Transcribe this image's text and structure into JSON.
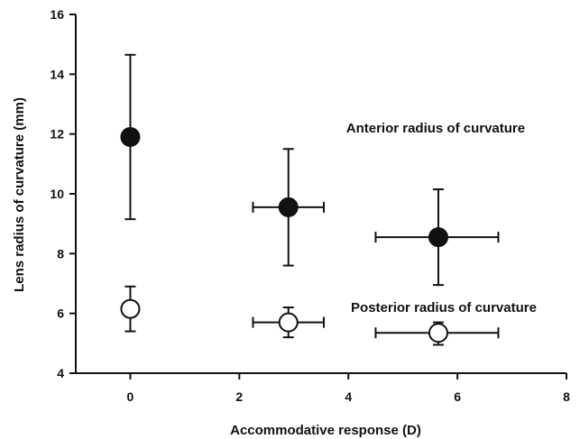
{
  "chart_data": {
    "type": "scatter",
    "title": "",
    "xlabel": "Accommodative response (D)",
    "ylabel": "Lens radius of curvature (mm)",
    "xlim": [
      -1,
      8
    ],
    "ylim": [
      4,
      16
    ],
    "xticks": [
      "0",
      "2",
      "4",
      "6",
      "8"
    ],
    "yticks": [
      "4",
      "6",
      "8",
      "10",
      "12",
      "14",
      "16"
    ],
    "grid": false,
    "series": [
      {
        "name": "Anterior radius of curvature",
        "marker": "filled-circle",
        "color": "#111111",
        "points": [
          {
            "x": 0.0,
            "y": 11.9,
            "y_low": 9.15,
            "y_high": 14.65
          },
          {
            "x": 2.9,
            "y": 9.55,
            "y_low": 7.6,
            "y_high": 11.5,
            "x_low": 2.25,
            "x_high": 3.55
          },
          {
            "x": 5.65,
            "y": 8.55,
            "y_low": 6.95,
            "y_high": 10.15,
            "x_low": 4.5,
            "x_high": 6.75
          }
        ]
      },
      {
        "name": "Posterior radius of curvature",
        "marker": "open-circle",
        "color": "#111111",
        "points": [
          {
            "x": 0.0,
            "y": 6.15,
            "y_low": 5.4,
            "y_high": 6.9
          },
          {
            "x": 2.9,
            "y": 5.7,
            "y_low": 5.2,
            "y_high": 6.2,
            "x_low": 2.25,
            "x_high": 3.55
          },
          {
            "x": 5.65,
            "y": 5.35,
            "y_low": 4.95,
            "y_high": 5.7,
            "x_low": 4.5,
            "x_high": 6.75
          }
        ]
      }
    ],
    "annotations": [
      {
        "text": "Anterior radius of curvature",
        "x": 5.6,
        "y": 12.05
      },
      {
        "text": "Posterior radius of curvature",
        "x": 5.75,
        "y": 6.05
      }
    ]
  }
}
